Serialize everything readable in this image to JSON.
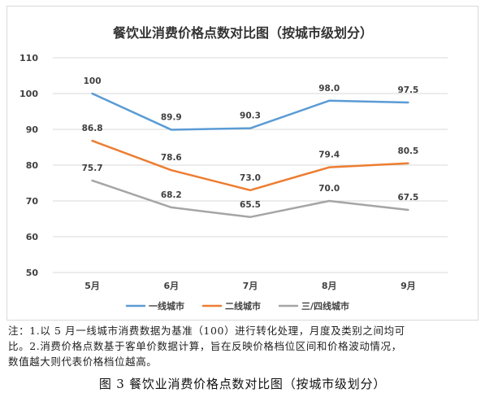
{
  "chart_data": {
    "type": "line",
    "title": "餐饮业消费价格点数对比图（按城市级划分）",
    "categories": [
      "5月",
      "6月",
      "7月",
      "8月",
      "9月"
    ],
    "yticks": [
      "110",
      "100",
      "90",
      "80",
      "70",
      "60",
      "50"
    ],
    "ylim": [
      50,
      110
    ],
    "grid": true,
    "legend_position": "bottom",
    "series": [
      {
        "name": "一线城市",
        "color": "#5b9bd5",
        "values": [
          100,
          89.9,
          90.3,
          98.0,
          97.5
        ],
        "labels": [
          "100",
          "89.9",
          "90.3",
          "98.0",
          "97.5"
        ]
      },
      {
        "name": "二线城市",
        "color": "#ed7d31",
        "values": [
          86.8,
          78.6,
          73.0,
          79.4,
          80.5
        ],
        "labels": [
          "86.8",
          "78.6",
          "73.0",
          "79.4",
          "80.5"
        ]
      },
      {
        "name": "三/四线城市",
        "color": "#a5a5a5",
        "values": [
          75.7,
          68.2,
          65.5,
          70.0,
          67.5
        ],
        "labels": [
          "75.7",
          "68.2",
          "65.5",
          "70.0",
          "67.5"
        ]
      }
    ]
  },
  "note": {
    "line1": "注：1.以 5 月一线城市消费数据为基准（100）进行转化处理，月度及类别之间均可",
    "line2": "比。2.消费价格点数基于客单价数据计算，旨在反映价格档位区间和价格波动情况，",
    "line3": "数值越大则代表价格档位越高。"
  },
  "caption": "图 3  餐饮业消费价格点数对比图（按城市级划分）"
}
